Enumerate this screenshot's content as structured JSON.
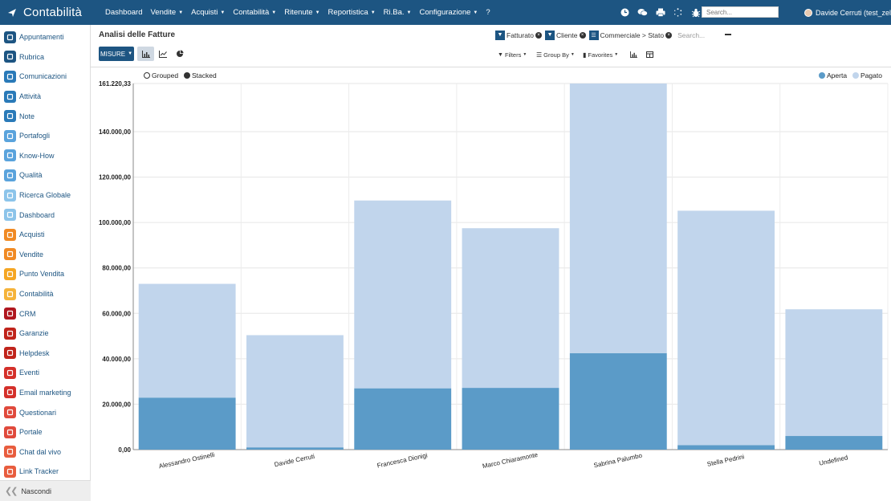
{
  "app": {
    "title": "Contabilità"
  },
  "topmenu": [
    {
      "label": "Dashboard",
      "dropdown": false
    },
    {
      "label": "Vendite",
      "dropdown": true
    },
    {
      "label": "Acquisti",
      "dropdown": true
    },
    {
      "label": "Contabilità",
      "dropdown": true
    },
    {
      "label": "Ritenute",
      "dropdown": true
    },
    {
      "label": "Reportistica",
      "dropdown": true
    },
    {
      "label": "Ri.Ba.",
      "dropdown": true
    },
    {
      "label": "Configurazione",
      "dropdown": true
    },
    {
      "label": "?",
      "dropdown": false
    }
  ],
  "topsearch": {
    "placeholder": "Search..."
  },
  "user": {
    "name": "Davide Cerruti (test_zelo)"
  },
  "sidebar": {
    "items": [
      {
        "label": "Appuntamenti",
        "icon": "calendar-icon",
        "color": "#1d5582"
      },
      {
        "label": "Rubrica",
        "icon": "contacts-icon",
        "color": "#1d5582"
      },
      {
        "label": "Comunicazioni",
        "icon": "chat-bubble-icon",
        "color": "#2a7ab8"
      },
      {
        "label": "Attività",
        "icon": "check-icon",
        "color": "#2a7ab8"
      },
      {
        "label": "Note",
        "icon": "note-icon",
        "color": "#2a7ab8"
      },
      {
        "label": "Portafogli",
        "icon": "lock-icon",
        "color": "#5aa3dc"
      },
      {
        "label": "Know-How",
        "icon": "head-icon",
        "color": "#5aa3dc"
      },
      {
        "label": "Qualità",
        "icon": "quality-icon",
        "color": "#5aa3dc"
      },
      {
        "label": "Ricerca Globale",
        "icon": "search-globe-icon",
        "color": "#8cc4ea"
      },
      {
        "label": "Dashboard",
        "icon": "dashboard-icon",
        "color": "#8cc4ea"
      },
      {
        "label": "Acquisti",
        "icon": "cart-icon",
        "color": "#f08a24"
      },
      {
        "label": "Vendite",
        "icon": "trend-icon",
        "color": "#f08a24"
      },
      {
        "label": "Punto Vendita",
        "icon": "pos-icon",
        "color": "#f5a623"
      },
      {
        "label": "Contabilità",
        "icon": "ledger-icon",
        "color": "#f5b33a"
      },
      {
        "label": "CRM",
        "icon": "eye-icon",
        "color": "#b0171f"
      },
      {
        "label": "Garanzie",
        "icon": "shield-icon",
        "color": "#c0241b"
      },
      {
        "label": "Helpdesk",
        "icon": "headset-icon",
        "color": "#c0241b"
      },
      {
        "label": "Eventi",
        "icon": "ticket-icon",
        "color": "#d4302a"
      },
      {
        "label": "Email marketing",
        "icon": "mail-icon",
        "color": "#d4302a"
      },
      {
        "label": "Questionari",
        "icon": "list-icon",
        "color": "#e04a3c"
      },
      {
        "label": "Portale",
        "icon": "portal-icon",
        "color": "#e04a3c"
      },
      {
        "label": "Chat dal vivo",
        "icon": "livechat-icon",
        "color": "#e85d3e"
      },
      {
        "label": "Link Tracker",
        "icon": "link-icon",
        "color": "#e85d3e"
      }
    ],
    "hide_label": "Nascondi"
  },
  "page": {
    "title": "Analisi delle Fatture",
    "measures_label": "MISURE",
    "facets": [
      {
        "label": "Fatturato",
        "icon": "filter-icon"
      },
      {
        "label": "Cliente",
        "icon": "filter-icon"
      },
      {
        "label": "Commerciale > Stato",
        "icon": "group-icon"
      }
    ],
    "search_placeholder": "Search...",
    "filters_label": "Filters",
    "groupby_label": "Group By",
    "favorites_label": "Favorites"
  },
  "chart_data": {
    "type": "bar",
    "mode": "stacked",
    "mode_options": [
      "Grouped",
      "Stacked"
    ],
    "selected_mode": "Stacked",
    "categories": [
      "Alessandro Ostinelli",
      "Davide Cerruti",
      "Francesca Dionigi",
      "Marco Chiaramonte",
      "Sabrina Palumbo",
      "Stella Pedrini",
      "Undefined"
    ],
    "series": [
      {
        "name": "Aperta",
        "color": "#5b9bc8",
        "values": [
          22900,
          1000,
          27000,
          27200,
          42500,
          2000,
          6000
        ]
      },
      {
        "name": "Pagato",
        "color": "#c1d5ec",
        "values": [
          50100,
          49400,
          82700,
          70300,
          118720.33,
          103200,
          55800
        ]
      }
    ],
    "ylim": [
      0,
      161220.33
    ],
    "yticks": [
      "0,00",
      "20.000,00",
      "40.000,00",
      "60.000,00",
      "80.000,00",
      "100.000,00",
      "120.000,00",
      "140.000,00",
      "161.220,33"
    ],
    "ytick_values": [
      0,
      20000,
      40000,
      60000,
      80000,
      100000,
      120000,
      140000,
      161220.33
    ],
    "legend_position": "top-right",
    "grid": true
  }
}
